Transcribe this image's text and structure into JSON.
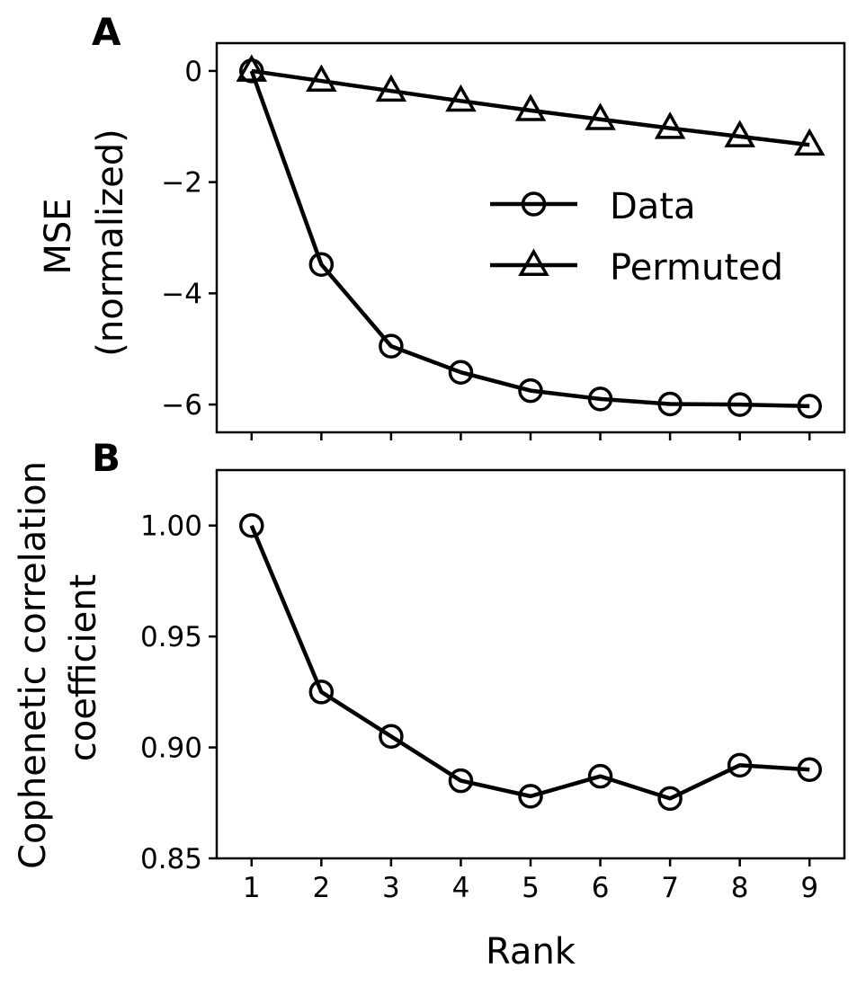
{
  "chart_data": [
    {
      "type": "line",
      "panel_label": "A",
      "title": "",
      "xlabel": "",
      "ylabel": "MSE",
      "ylabel_line2": "(normalized)",
      "x": [
        1,
        2,
        3,
        4,
        5,
        6,
        7,
        8,
        9
      ],
      "xlim": [
        0.5,
        9.5
      ],
      "ylim": [
        -6.5,
        0.5
      ],
      "yticks": [
        0,
        -2,
        -4,
        -6
      ],
      "ytick_labels": [
        "0",
        "−2",
        "−4",
        "−6"
      ],
      "legend_placement": "center-right",
      "series": [
        {
          "name": "Data",
          "marker": "circle",
          "values": [
            0,
            -3.48,
            -4.95,
            -5.42,
            -5.75,
            -5.9,
            -5.99,
            -6.0,
            -6.03
          ]
        },
        {
          "name": "Permuted",
          "marker": "triangle",
          "values": [
            0,
            -0.18,
            -0.36,
            -0.54,
            -0.71,
            -0.87,
            -1.03,
            -1.18,
            -1.33
          ]
        }
      ]
    },
    {
      "type": "line",
      "panel_label": "B",
      "title": "",
      "xlabel": "Rank",
      "ylabel": "Cophenetic correlation",
      "ylabel_line2": "coefficient",
      "x": [
        1,
        2,
        3,
        4,
        5,
        6,
        7,
        8,
        9
      ],
      "xlim": [
        0.5,
        9.5
      ],
      "ylim": [
        0.85,
        1.025
      ],
      "xticks": [
        1,
        2,
        3,
        4,
        5,
        6,
        7,
        8,
        9
      ],
      "xtick_labels": [
        "1",
        "2",
        "3",
        "4",
        "5",
        "6",
        "7",
        "8",
        "9"
      ],
      "yticks": [
        0.85,
        0.9,
        0.95,
        1.0
      ],
      "ytick_labels": [
        "0.85",
        "0.90",
        "0.95",
        "1.00"
      ],
      "series": [
        {
          "name": "Data",
          "marker": "circle",
          "values": [
            1.0,
            0.925,
            0.905,
            0.885,
            0.878,
            0.887,
            0.877,
            0.892,
            0.89
          ]
        }
      ]
    }
  ]
}
